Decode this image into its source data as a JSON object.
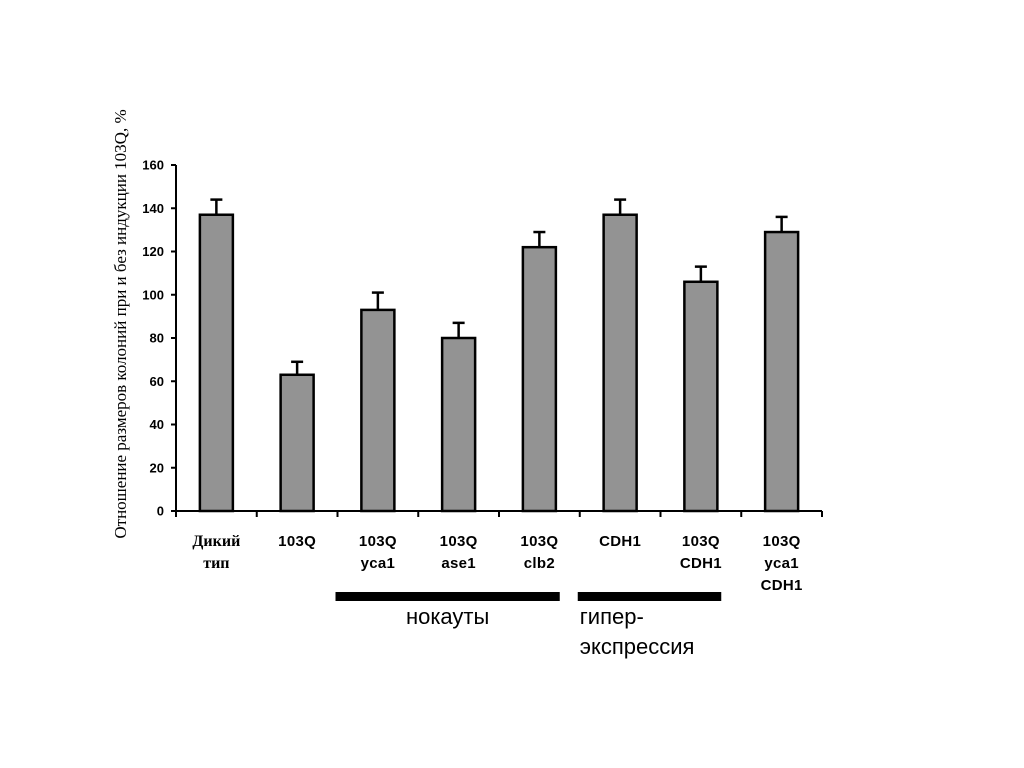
{
  "chart_data": {
    "type": "bar",
    "categories": [
      [
        "Дикий",
        "тип"
      ],
      [
        "103Q"
      ],
      [
        "103Q",
        "yca1"
      ],
      [
        "103Q",
        "ase1"
      ],
      [
        "103Q",
        "clb2"
      ],
      [
        "CDH1"
      ],
      [
        "103Q",
        "CDH1"
      ],
      [
        "103Q",
        "yca1",
        "CDH1"
      ]
    ],
    "values": [
      137,
      63,
      93,
      80,
      122,
      137,
      106,
      129
    ],
    "errors": [
      7,
      6,
      8,
      7,
      7,
      7,
      7,
      7
    ],
    "ylabel": "Отношение размеров колоний при и без индукции 103Q, %",
    "ylim": [
      0,
      160
    ],
    "yticks": [
      0,
      20,
      40,
      60,
      80,
      100,
      120,
      140,
      160
    ],
    "bar_color": "#939393",
    "bar_edge_color": "#000000",
    "grid": false,
    "groups": [
      {
        "label_lines": [
          "нокауты"
        ],
        "from_category": 2,
        "to_category": 4
      },
      {
        "label_lines": [
          "гипер-",
          "экспрессия"
        ],
        "from_category": 5,
        "to_category": 6
      }
    ]
  }
}
